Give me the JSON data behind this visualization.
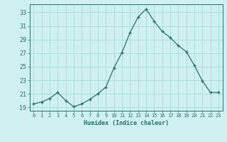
{
  "x": [
    0,
    1,
    2,
    3,
    4,
    5,
    6,
    7,
    8,
    9,
    10,
    11,
    12,
    13,
    14,
    15,
    16,
    17,
    18,
    19,
    20,
    21,
    22,
    23
  ],
  "y": [
    19.5,
    19.8,
    20.3,
    21.2,
    20.0,
    19.1,
    19.5,
    20.2,
    21.0,
    22.0,
    24.8,
    27.1,
    30.0,
    32.3,
    33.5,
    31.7,
    30.2,
    29.3,
    28.1,
    27.2,
    25.2,
    22.9,
    21.2,
    21.2
  ],
  "bg_color": "#cff0f0",
  "grid_color": "#aad8d8",
  "line_color": "#2a6f6f",
  "marker_color": "#2a6f6f",
  "xlabel": "Humidex (Indice chaleur)",
  "ylabel_ticks": [
    19,
    21,
    23,
    25,
    27,
    29,
    31,
    33
  ],
  "xlim": [
    -0.5,
    23.5
  ],
  "ylim": [
    18.5,
    34.2
  ],
  "xticks": [
    0,
    1,
    2,
    3,
    4,
    5,
    6,
    7,
    8,
    9,
    10,
    11,
    12,
    13,
    14,
    15,
    16,
    17,
    18,
    19,
    20,
    21,
    22,
    23
  ]
}
